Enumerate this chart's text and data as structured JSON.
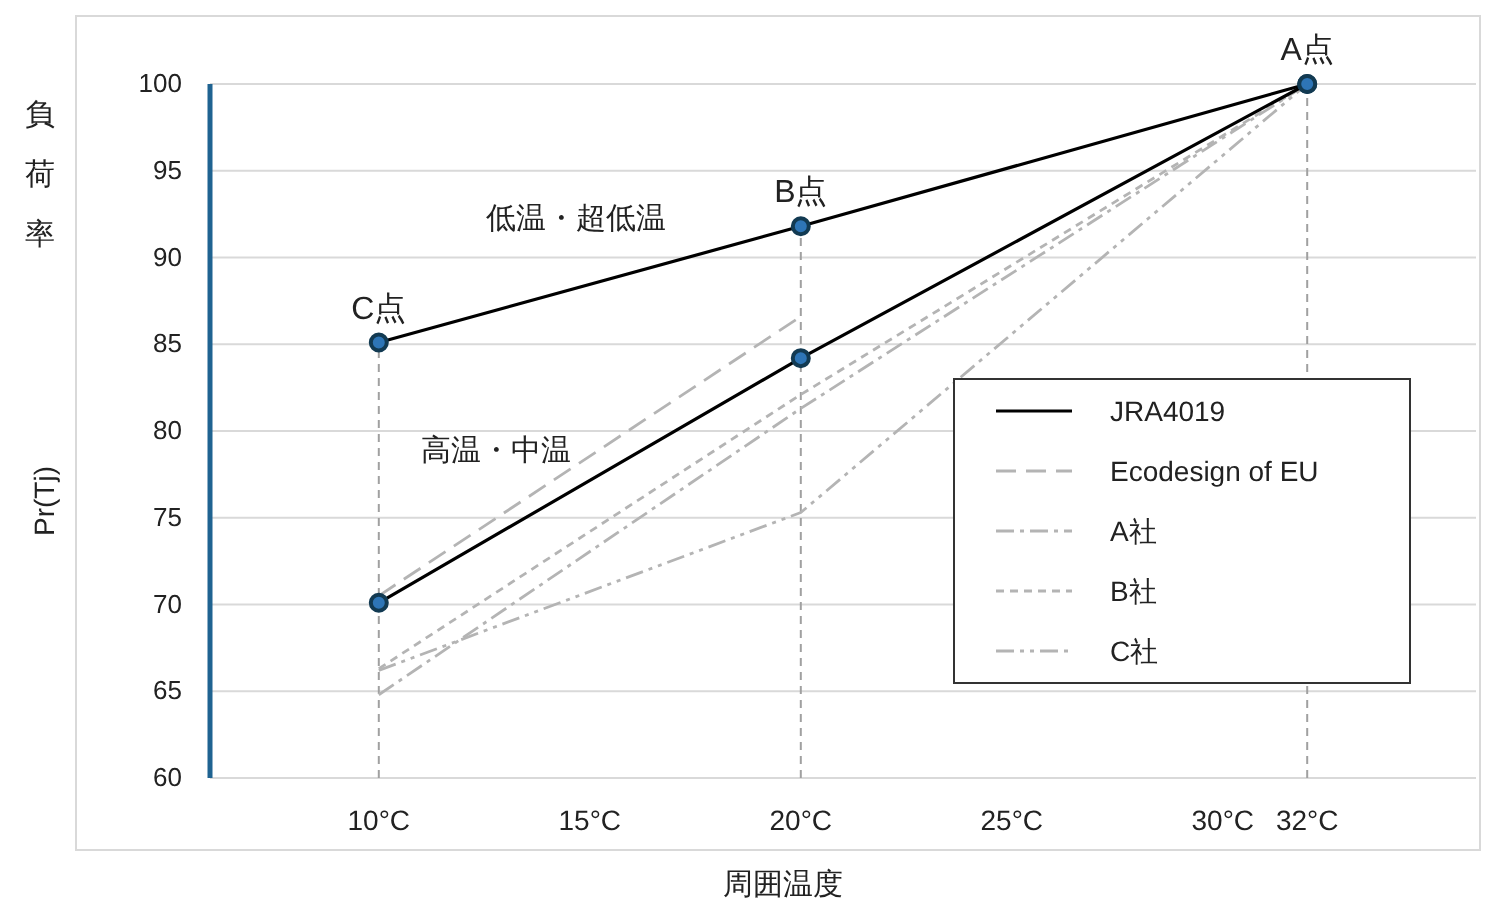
{
  "chart_data": {
    "type": "line",
    "xlabel": "周囲温度",
    "ylabel": "Pr(Tj)",
    "xlim": [
      6,
      36
    ],
    "ylim": [
      60,
      100
    ],
    "xticks": [
      {
        "value": 10,
        "label": "10°C"
      },
      {
        "value": 15,
        "label": "15°C"
      },
      {
        "value": 20,
        "label": "20°C"
      },
      {
        "value": 25,
        "label": "25°C"
      },
      {
        "value": 30,
        "label": "30°C"
      },
      {
        "value": 32,
        "label": "32°C"
      }
    ],
    "yticks": [
      60,
      65,
      70,
      75,
      80,
      85,
      90,
      95,
      100
    ],
    "grid": "y",
    "legend": "right",
    "series": [
      {
        "name": "JRA4019",
        "color": "#000000",
        "line_style": "solid",
        "marker": "circle",
        "x": [
          10,
          20,
          32
        ],
        "values": [
          70.1,
          84.2,
          100
        ]
      },
      {
        "color": "#000000",
        "line_style": "solid",
        "marker": "circle",
        "x": [
          10,
          20,
          32
        ],
        "values": [
          85.1,
          91.8,
          100
        ]
      },
      {
        "name": "Ecodesign of EU",
        "color": "#b4b4b4",
        "line_style": "dashed",
        "marker": "none",
        "x": [
          10,
          20
        ],
        "values": [
          70.5,
          86.6
        ]
      },
      {
        "name": "A社",
        "color": "#b4b4b4",
        "line_style": "dashdot",
        "marker": "none",
        "x": [
          10,
          20,
          32
        ],
        "values": [
          64.8,
          81.3,
          100
        ]
      },
      {
        "name": "B社",
        "color": "#b4b4b4",
        "line_style": "dotted",
        "marker": "none",
        "x": [
          10,
          20,
          32
        ],
        "values": [
          66.3,
          82.1,
          100
        ]
      },
      {
        "name": "C社",
        "color": "#b4b4b4",
        "line_style": "dashdotdot",
        "marker": "none",
        "x": [
          10,
          20,
          32
        ],
        "values": [
          66.2,
          75.3,
          100
        ]
      }
    ],
    "ref_lines": [
      {
        "axis": "x",
        "value": 10,
        "line_style": "dotted",
        "color": "#a0a0a0"
      },
      {
        "axis": "x",
        "value": 20,
        "line_style": "dotted",
        "color": "#a0a0a0"
      },
      {
        "axis": "x",
        "value": 32,
        "line_style": "dotted",
        "color": "#a0a0a0"
      }
    ],
    "annotations": [
      "負荷率",
      "低温・超低温",
      "高温・中温",
      {
        "text": "C点",
        "x": 10,
        "y": 85.1
      },
      {
        "text": "B点",
        "x": 20,
        "y": 91.8
      },
      {
        "text": "A点",
        "x": 32,
        "y": 100
      }
    ]
  }
}
